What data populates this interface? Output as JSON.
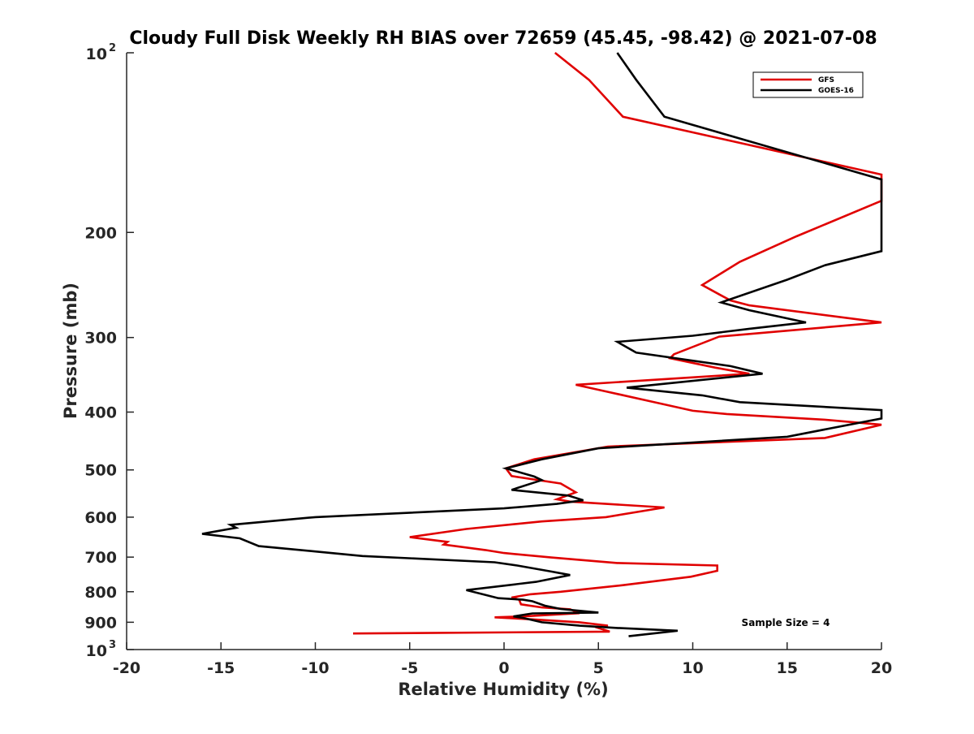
{
  "chart_data": {
    "type": "line",
    "title": "Cloudy Full Disk Weekly RH BIAS over 72659 (45.45, -98.42) @ 2021-07-08",
    "xlabel": "Relative Humidity (%)",
    "ylabel": "Pressure (mb)",
    "xlim": [
      -20,
      20
    ],
    "ylim": [
      100,
      1000
    ],
    "yscale": "log",
    "y_reversed": true,
    "x_ticks": [
      -20,
      -15,
      -10,
      -5,
      0,
      5,
      10,
      15,
      20
    ],
    "x_tick_labels": [
      "-20",
      "-15",
      "-10",
      "-5",
      "0",
      "5",
      "10",
      "15",
      "20"
    ],
    "y_ticks": [
      200,
      300,
      400,
      500,
      600,
      700,
      800,
      900
    ],
    "y_tick_labels": [
      "200",
      "300",
      "400",
      "500",
      "600",
      "700",
      "800",
      "900"
    ],
    "y_end_labels": [
      {
        "value": 100,
        "base": "10",
        "exp": "2"
      },
      {
        "value": 1000,
        "base": "10",
        "exp": "3"
      }
    ],
    "grid": false,
    "legend": "top-right",
    "annotation": "Sample Size = 4",
    "series": [
      {
        "name": "GFS",
        "color": "#e00000",
        "x": [
          2.7,
          4.5,
          6.3,
          20.0,
          20.0,
          15.5,
          12.5,
          10.5,
          11.5,
          12.0,
          13.0,
          20.0,
          11.4,
          9.0,
          8.8,
          11.2,
          13.0,
          3.8,
          5.5,
          7.8,
          10.0,
          11.8,
          17.0,
          20.0,
          17.0,
          5.5,
          1.6,
          0.1,
          0.4,
          3.0,
          3.8,
          2.8,
          3.5,
          8.5,
          5.4,
          2.0,
          -2.0,
          -5.0,
          -3.0,
          -3.2,
          -1.0,
          0.0,
          2.5,
          6.0,
          11.3,
          11.3,
          9.9,
          6.3,
          3.0,
          1.4,
          0.4,
          0.8,
          0.9,
          2.0,
          3.5,
          4.0,
          1.0,
          -0.5,
          1.5,
          4.0,
          5.5,
          5.0,
          5.6,
          -8.0
        ],
        "y": [
          100,
          111,
          128,
          160,
          177,
          203,
          224,
          245,
          255,
          260,
          265,
          283,
          299,
          320,
          325,
          337,
          345,
          360,
          370,
          384,
          398,
          403,
          412,
          420,
          442,
          457,
          480,
          497,
          512,
          527,
          545,
          560,
          565,
          578,
          600,
          610,
          628,
          648,
          660,
          667,
          681,
          689,
          701,
          716,
          723,
          738,
          755,
          780,
          800,
          808,
          818,
          825,
          840,
          850,
          856,
          869,
          880,
          883,
          890,
          900,
          912,
          920,
          933,
          940
        ]
      },
      {
        "name": "GOES-16",
        "color": "#000000",
        "x": [
          6.0,
          7.0,
          8.5,
          20.0,
          20.0,
          17.0,
          15.0,
          11.5,
          13.0,
          16.0,
          13.0,
          10.0,
          6.0,
          7.0,
          12.0,
          13.7,
          6.5,
          10.5,
          12.5,
          20.0,
          20.0,
          15.0,
          5.0,
          2.0,
          0.1,
          1.6,
          2.0,
          0.4,
          3.4,
          4.2,
          2.8,
          0.0,
          -10.0,
          -14.5,
          -14.2,
          -16.0,
          -14.0,
          -13.0,
          -10.0,
          -7.5,
          -0.5,
          0.7,
          2.5,
          3.5,
          1.7,
          -2.0,
          -0.3,
          1.0,
          1.5,
          2.2,
          3.0,
          5.0,
          1.5,
          0.5,
          1.0,
          2.0,
          4.0,
          6.0,
          9.2,
          6.6
        ],
        "y": [
          100,
          111,
          128,
          163,
          215,
          227,
          240,
          262,
          270,
          283,
          290,
          298,
          305,
          318,
          335,
          345,
          364,
          375,
          385,
          397,
          410,
          440,
          460,
          480,
          497,
          513,
          520,
          540,
          552,
          562,
          570,
          580,
          600,
          618,
          625,
          640,
          651,
          671,
          685,
          697,
          714,
          723,
          740,
          750,
          770,
          795,
          820,
          825,
          830,
          845,
          855,
          867,
          870,
          880,
          885,
          900,
          912,
          920,
          930,
          950
        ]
      }
    ]
  }
}
